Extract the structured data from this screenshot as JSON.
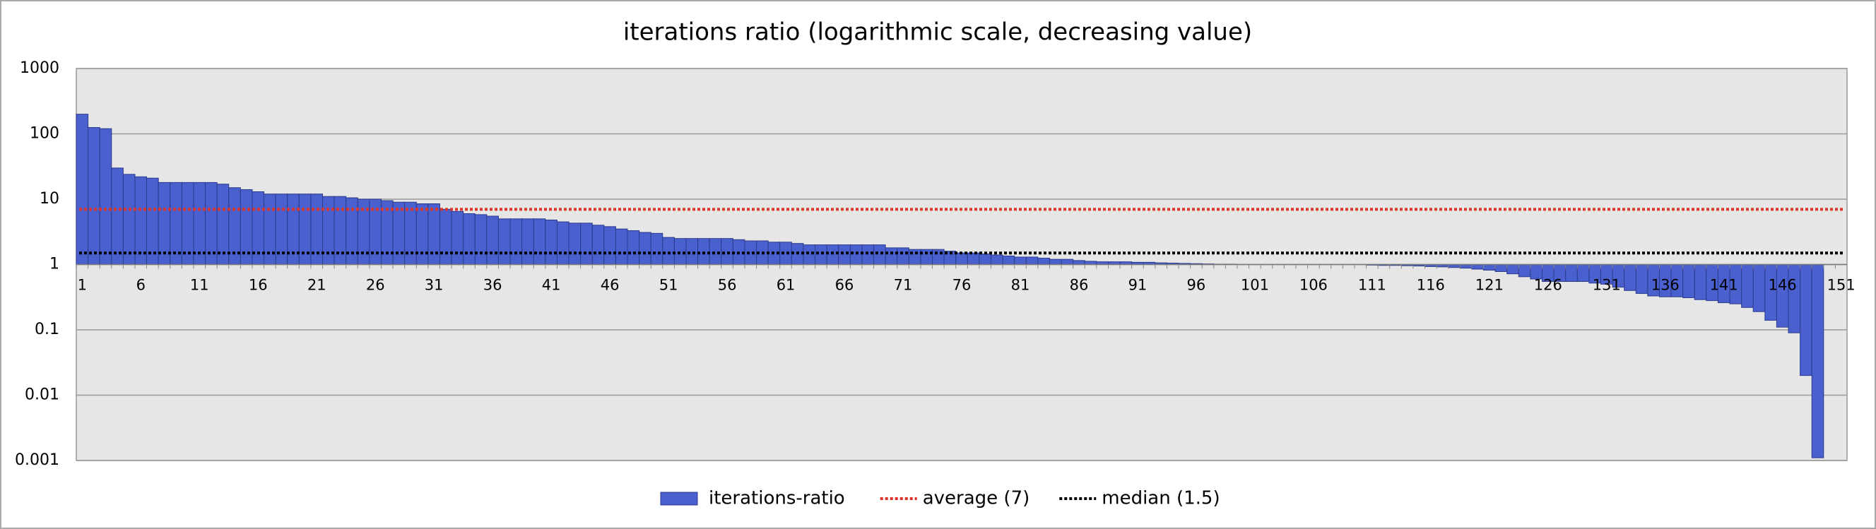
{
  "chart_data": {
    "type": "bar",
    "title": "iterations ratio (logarithmic scale, decreasing value)",
    "log_scale": true,
    "grid": true,
    "baseline": 1,
    "ylim": [
      0.001,
      1000
    ],
    "yticks": [
      0.001,
      0.01,
      0.1,
      1,
      10,
      100,
      1000
    ],
    "categories": [
      "1",
      null,
      null,
      null,
      null,
      "6",
      null,
      null,
      null,
      null,
      "11",
      null,
      null,
      null,
      null,
      "16",
      null,
      null,
      null,
      null,
      "21",
      null,
      null,
      null,
      null,
      "26",
      null,
      null,
      null,
      null,
      "31",
      null,
      null,
      null,
      null,
      "36",
      null,
      null,
      null,
      null,
      "41",
      null,
      null,
      null,
      null,
      "46",
      null,
      null,
      null,
      null,
      "51",
      null,
      null,
      null,
      null,
      "56",
      null,
      null,
      null,
      null,
      "61",
      null,
      null,
      null,
      null,
      "66",
      null,
      null,
      null,
      null,
      "71",
      null,
      null,
      null,
      null,
      "76",
      null,
      null,
      null,
      null,
      "81",
      null,
      null,
      null,
      null,
      "86",
      null,
      null,
      null,
      null,
      "91",
      null,
      null,
      null,
      null,
      "96",
      null,
      null,
      null,
      null,
      "101",
      null,
      null,
      null,
      null,
      "106",
      null,
      null,
      null,
      null,
      "111",
      null,
      null,
      null,
      null,
      "116",
      null,
      null,
      null,
      null,
      "121",
      null,
      null,
      null,
      null,
      "126",
      null,
      null,
      null,
      null,
      "131",
      null,
      null,
      null,
      null,
      "136",
      null,
      null,
      null,
      null,
      "141",
      null,
      null,
      null,
      null,
      "146",
      null,
      null,
      null,
      null,
      "151"
    ],
    "series": [
      {
        "name": "iterations-ratio",
        "color": "#4a60cf",
        "values": [
          200,
          125,
          120,
          30,
          24,
          22,
          21,
          18,
          18,
          18,
          18,
          18,
          17,
          15,
          14,
          13,
          12,
          12,
          12,
          12,
          12,
          11,
          11,
          10.5,
          10,
          10,
          9.5,
          9,
          9,
          8.5,
          8.5,
          7,
          6.5,
          6,
          5.8,
          5.5,
          5,
          5,
          5,
          5,
          4.8,
          4.5,
          4.3,
          4.3,
          4,
          3.8,
          3.5,
          3.3,
          3.1,
          3,
          2.6,
          2.5,
          2.5,
          2.5,
          2.5,
          2.5,
          2.4,
          2.3,
          2.3,
          2.2,
          2.2,
          2.1,
          2,
          2,
          2,
          2,
          2,
          2,
          2,
          1.8,
          1.8,
          1.7,
          1.7,
          1.7,
          1.6,
          1.5,
          1.5,
          1.45,
          1.4,
          1.35,
          1.3,
          1.3,
          1.25,
          1.2,
          1.2,
          1.15,
          1.12,
          1.1,
          1.1,
          1.1,
          1.08,
          1.08,
          1.06,
          1.05,
          1.04,
          1.03,
          1.02,
          1.01,
          1.01,
          1,
          1,
          1,
          1,
          1,
          1,
          1,
          1,
          1,
          1,
          1,
          0.98,
          0.97,
          0.97,
          0.96,
          0.95,
          0.93,
          0.92,
          0.9,
          0.88,
          0.85,
          0.82,
          0.78,
          0.72,
          0.65,
          0.6,
          0.55,
          0.55,
          0.55,
          0.55,
          0.52,
          0.5,
          0.45,
          0.4,
          0.36,
          0.33,
          0.32,
          0.32,
          0.31,
          0.29,
          0.28,
          0.26,
          0.25,
          0.22,
          0.19,
          0.14,
          0.11,
          0.09,
          0.02,
          0.0011,
          null,
          null
        ]
      }
    ],
    "reference_lines": [
      {
        "name": "average (7)",
        "value": 7,
        "color": "#e0332a"
      },
      {
        "name": "median (1.5)",
        "value": 1.5,
        "color": "#000000"
      }
    ]
  }
}
